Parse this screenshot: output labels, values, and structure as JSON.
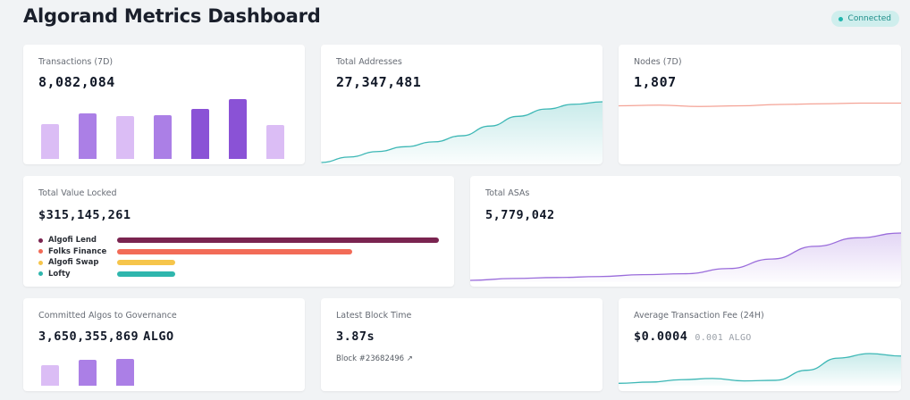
{
  "header": {
    "title": "Algorand Metrics Dashboard",
    "status": "Connected",
    "status_color": "#1fb5ad"
  },
  "transactions": {
    "label": "Transactions (7D)",
    "value": "8,082,084",
    "bars": [
      0.56,
      0.73,
      0.68,
      0.7,
      0.8,
      0.96,
      0.54
    ],
    "bar_colors": [
      "#dbbdf5",
      "#ab7fe6",
      "#dbbdf5",
      "#ab7fe6",
      "#8a52d6",
      "#8a52d6",
      "#dbbdf5"
    ]
  },
  "addresses": {
    "label": "Total Addresses",
    "value": "27,347,481",
    "series": [
      0.0,
      0.09,
      0.18,
      0.26,
      0.34,
      0.44,
      0.6,
      0.76,
      0.88,
      0.96,
      1.0
    ],
    "color": "#3cb7b5"
  },
  "nodes": {
    "label": "Nodes (7D)",
    "value": "1,807",
    "series": [
      0.62,
      0.63,
      0.61,
      0.62,
      0.64,
      0.65,
      0.66,
      0.66
    ],
    "color": "#f4a396"
  },
  "tvl": {
    "label": "Total Value Locked",
    "value": "$315,145,261",
    "items": [
      {
        "name": "Algofi Lend",
        "share": 1.0,
        "color": "#7a2450"
      },
      {
        "name": "Folks Finance",
        "share": 0.73,
        "color": "#f26b57"
      },
      {
        "name": "Algofi Swap",
        "share": 0.18,
        "color": "#f6c54b"
      },
      {
        "name": "Lofty",
        "share": 0.18,
        "color": "#2fb6ad"
      }
    ]
  },
  "asas": {
    "label": "Total ASAs",
    "value": "5,779,042",
    "series": [
      0.0,
      0.04,
      0.06,
      0.08,
      0.12,
      0.14,
      0.25,
      0.45,
      0.72,
      0.9,
      1.0
    ],
    "color": "#9a6cdb"
  },
  "governance": {
    "label": "Committed Algos to Governance",
    "value": "3,650,355,869",
    "unit": "ALGO",
    "bars": [
      0.72,
      0.9,
      0.95
    ],
    "bar_colors": [
      "#dbbdf5",
      "#ab7fe6",
      "#ab7fe6"
    ]
  },
  "block_time": {
    "label": "Latest Block Time",
    "value": "3.87s",
    "block_link": "Block #23682496 ↗"
  },
  "fee": {
    "label": "Average Transaction Fee (24H)",
    "value": "$0.0004",
    "sub": "0.001 ALGO",
    "series": [
      0.02,
      0.06,
      0.14,
      0.18,
      0.1,
      0.12,
      0.45,
      0.85,
      1.0,
      0.92
    ],
    "color": "#3cb7b5"
  }
}
